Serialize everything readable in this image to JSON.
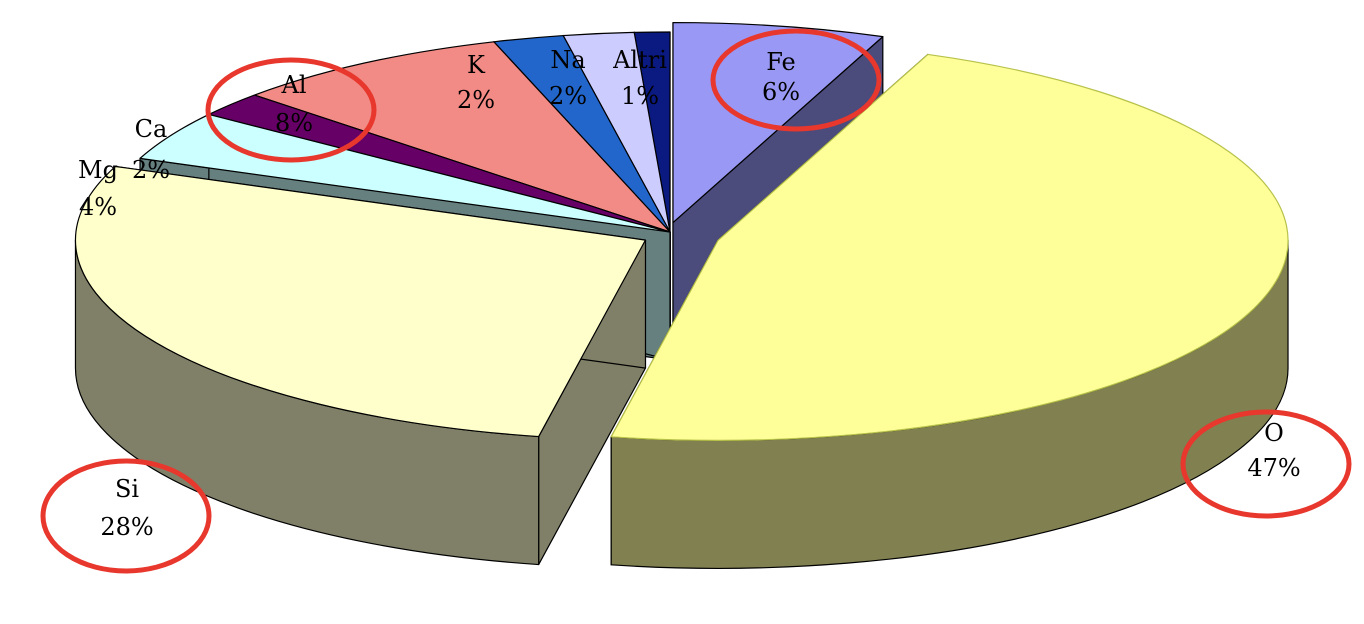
{
  "chart_data": {
    "type": "pie",
    "title": "",
    "three_d": true,
    "exploded": true,
    "slices": [
      {
        "name": "Fe",
        "percent_label": "6%",
        "value": 6,
        "color_top": "#9999f5",
        "color_side": "#4b4b7c",
        "highlighted": true
      },
      {
        "name": "O",
        "percent_label": "47%",
        "value": 47,
        "color_top": "#ffff99",
        "color_side": "#808050",
        "highlighted": true
      },
      {
        "name": "Si",
        "percent_label": "28%",
        "value": 28,
        "color_top": "#ffffcc",
        "color_side": "#808069",
        "highlighted": true
      },
      {
        "name": "Mg",
        "percent_label": "4%",
        "value": 4,
        "color_top": "#ccffff",
        "color_side": "#668080",
        "highlighted": false
      },
      {
        "name": "Ca",
        "percent_label": "2%",
        "value": 2,
        "color_top": "#660066",
        "color_side": "#330033",
        "highlighted": false
      },
      {
        "name": "Al",
        "percent_label": "8%",
        "value": 8,
        "color_top": "#f28a85",
        "color_side": "#7a4545",
        "highlighted": true
      },
      {
        "name": "K",
        "percent_label": "2%",
        "value": 2,
        "color_top": "#2266cc",
        "color_side": "#113366",
        "highlighted": false
      },
      {
        "name": "Na",
        "percent_label": "2%",
        "value": 2,
        "color_top": "#ccccff",
        "color_side": "#666680",
        "highlighted": false
      },
      {
        "name": "Altri",
        "percent_label": "1%",
        "value": 1,
        "color_top": "#0a1a80",
        "color_side": "#050d40",
        "highlighted": false
      }
    ],
    "highlight_color": "#e8372c",
    "legend": "none"
  }
}
